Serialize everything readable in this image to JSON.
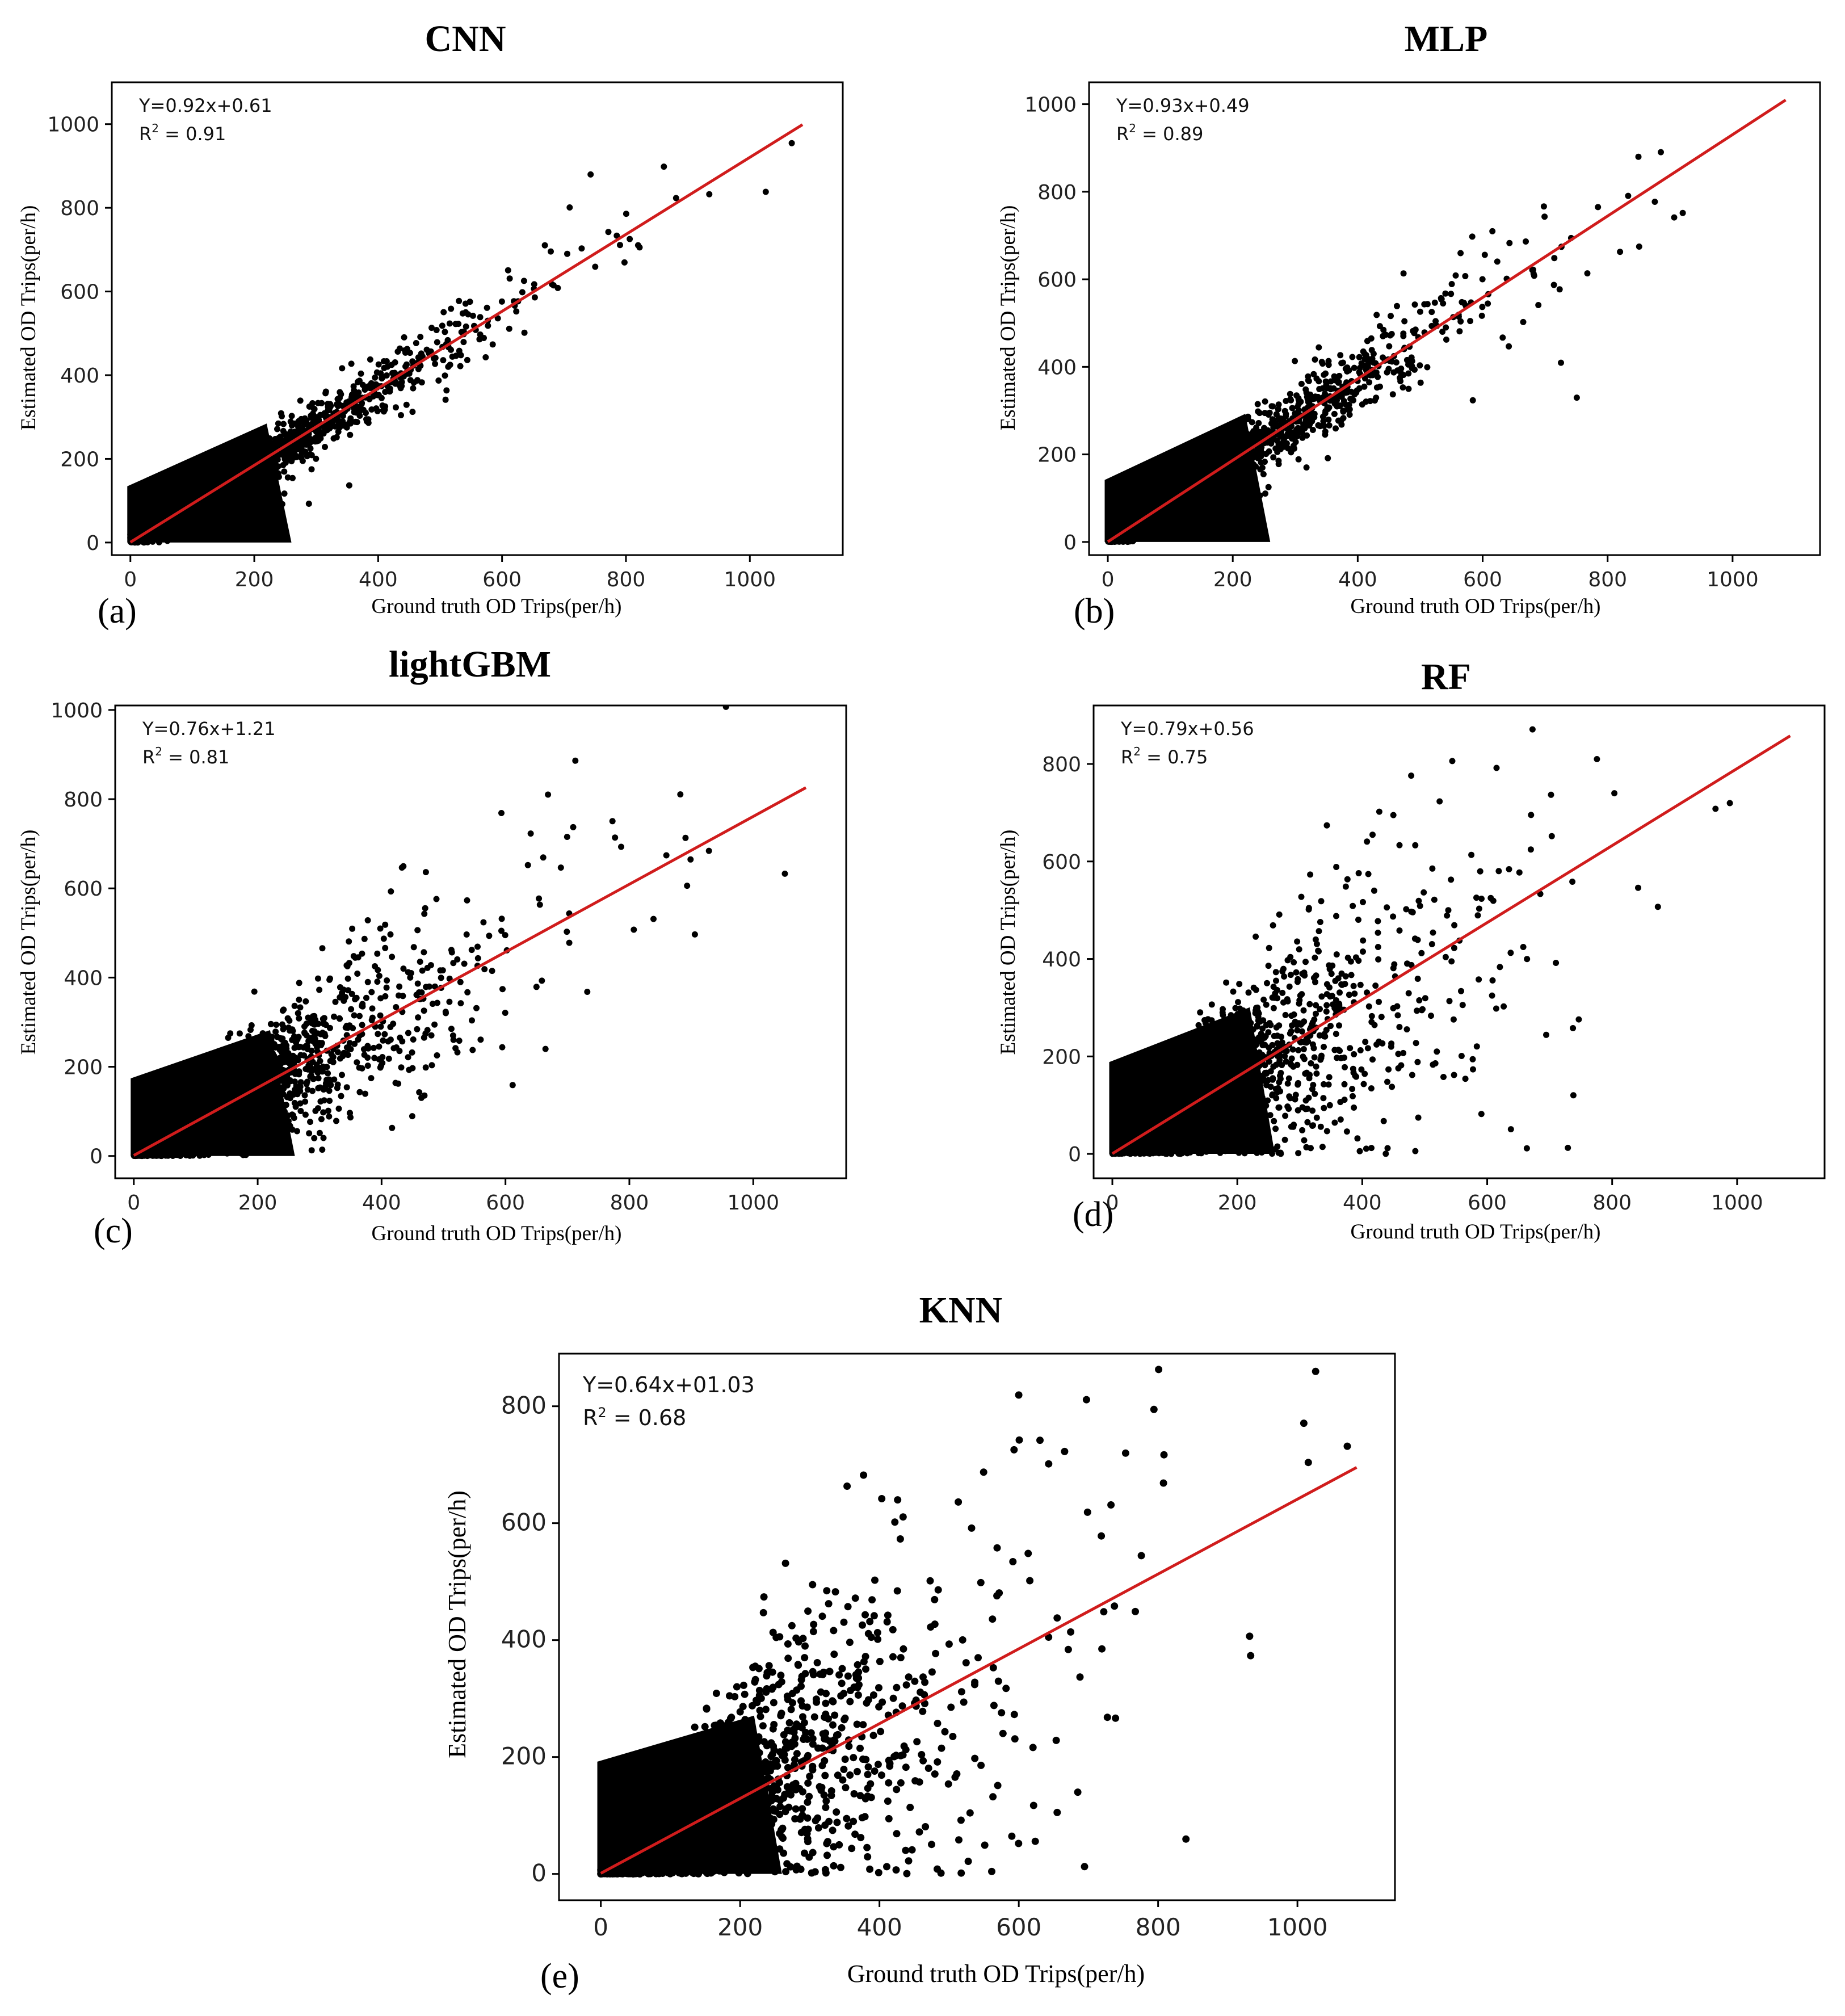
{
  "figure": {
    "panels": [
      {
        "id": "a",
        "title": "CNN",
        "label": "(a)",
        "equation": "Y=0.92x+0.61",
        "r2_prefix": "R",
        "r2_sup": "2",
        "r2_value": " = 0.91"
      },
      {
        "id": "b",
        "title": "MLP",
        "label": "(b)",
        "equation": "Y=0.93x+0.49",
        "r2_prefix": "R",
        "r2_sup": "2",
        "r2_value": " = 0.89"
      },
      {
        "id": "c",
        "title": "lightGBM",
        "label": "(c)",
        "equation": "Y=0.76x+1.21",
        "r2_prefix": "R",
        "r2_sup": "2",
        "r2_value": " = 0.81"
      },
      {
        "id": "d",
        "title": "RF",
        "label": "(d)",
        "equation": "Y=0.79x+0.56",
        "r2_prefix": "R",
        "r2_sup": "2",
        "r2_value": " = 0.75"
      },
      {
        "id": "e",
        "title": "KNN",
        "label": "(e)",
        "equation": "Y=0.64x+01.03",
        "r2_prefix": "R",
        "r2_sup": "2",
        "r2_value": " = 0.68"
      }
    ]
  },
  "chart_data": [
    {
      "type": "scatter",
      "title": "CNN",
      "xlabel": "Ground truth OD Trips(per/h)",
      "ylabel": "Estimated OD Trips(per/h)",
      "xlim": [
        -30,
        1150
      ],
      "ylim": [
        -30,
        1100
      ],
      "xticks": [
        0,
        200,
        400,
        600,
        800,
        1000
      ],
      "yticks": [
        0,
        200,
        400,
        600,
        800,
        1000
      ],
      "fit": {
        "slope": 0.92,
        "intercept": 0.61,
        "x_range": [
          0,
          1085
        ]
      },
      "r2": 0.91,
      "spread": 0.08,
      "n_points": 2600
    },
    {
      "type": "scatter",
      "title": "MLP",
      "xlabel": "Ground truth OD Trips(per/h)",
      "ylabel": "Estimated OD Trips(per/h)",
      "xlim": [
        -30,
        1140
      ],
      "ylim": [
        -30,
        1050
      ],
      "xticks": [
        0,
        200,
        400,
        600,
        800,
        1000
      ],
      "yticks": [
        0,
        200,
        400,
        600,
        800,
        1000
      ],
      "fit": {
        "slope": 0.93,
        "intercept": 0.49,
        "x_range": [
          0,
          1085
        ]
      },
      "r2": 0.89,
      "spread": 0.12,
      "n_points": 2600
    },
    {
      "type": "scatter",
      "title": "lightGBM",
      "xlabel": "Ground truth OD Trips(per/h)",
      "ylabel": "Estimated OD Trips(per/h)",
      "xlim": [
        -30,
        1150
      ],
      "ylim": [
        -50,
        1010
      ],
      "xticks": [
        0,
        200,
        400,
        600,
        800,
        1000
      ],
      "yticks": [
        0,
        200,
        400,
        600,
        800,
        1000
      ],
      "fit": {
        "slope": 0.76,
        "intercept": 1.21,
        "x_range": [
          0,
          1085
        ]
      },
      "r2": 0.81,
      "spread": 0.3,
      "n_points": 2600
    },
    {
      "type": "scatter",
      "title": "RF",
      "xlabel": "Ground truth OD Trips(per/h)",
      "ylabel": "Estimated OD Trips(per/h)",
      "xlim": [
        -30,
        1140
      ],
      "ylim": [
        -50,
        920
      ],
      "xticks": [
        0,
        200,
        400,
        600,
        800,
        1000
      ],
      "yticks": [
        0,
        200,
        400,
        600,
        800
      ],
      "fit": {
        "slope": 0.79,
        "intercept": 0.56,
        "x_range": [
          0,
          1085
        ]
      },
      "r2": 0.75,
      "spread": 0.38,
      "n_points": 2600
    },
    {
      "type": "scatter",
      "title": "KNN",
      "xlabel": "Ground truth OD Trips(per/h)",
      "ylabel": "Estimated OD Trips(per/h)",
      "xlim": [
        -60,
        1140
      ],
      "ylim": [
        -45,
        890
      ],
      "xticks": [
        0,
        200,
        400,
        600,
        800,
        1000
      ],
      "yticks": [
        0,
        200,
        400,
        600,
        800
      ],
      "fit": {
        "slope": 0.64,
        "intercept": 1.03,
        "x_range": [
          0,
          1085
        ]
      },
      "r2": 0.68,
      "spread": 0.4,
      "n_points": 2800
    }
  ]
}
